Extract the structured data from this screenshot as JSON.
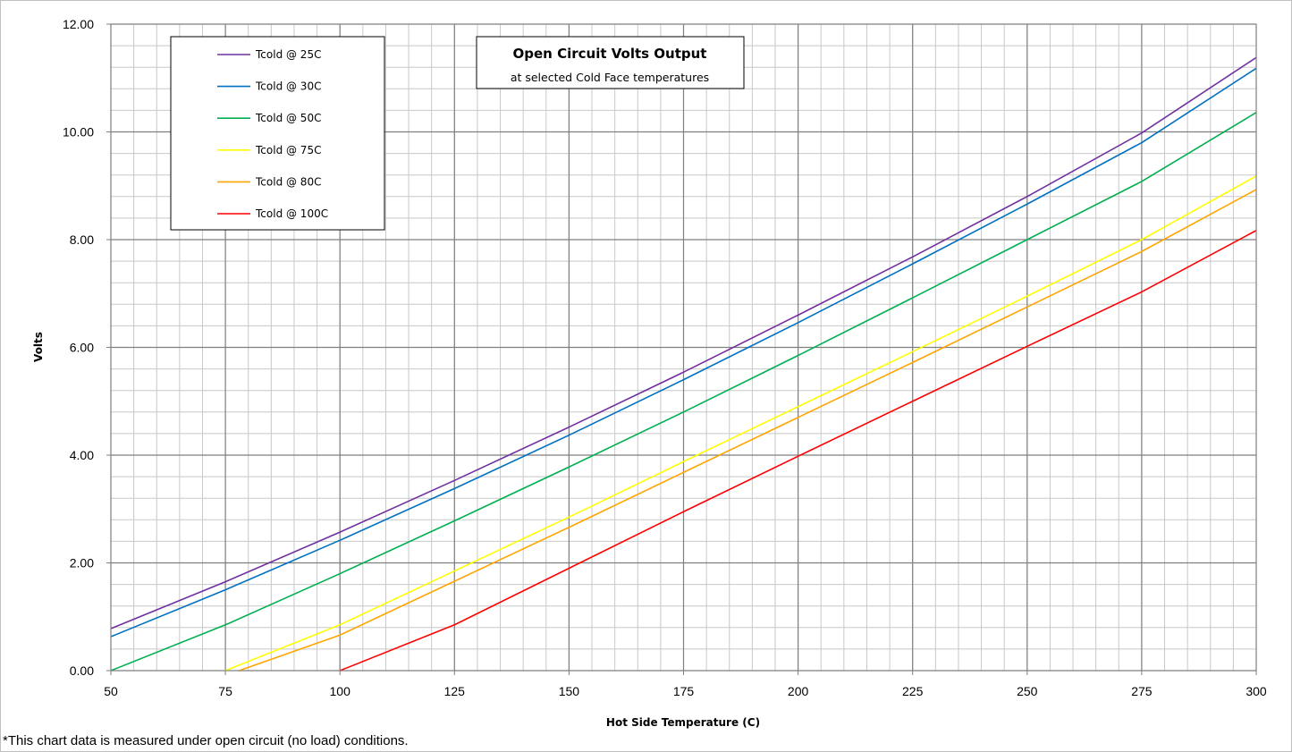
{
  "chart_data": {
    "type": "line",
    "title": "Open Circuit Volts Output",
    "subtitle": "at selected Cold Face temperatures",
    "xlabel": "Hot Side Temperature (C)",
    "ylabel": "Volts",
    "xlim": [
      50,
      300
    ],
    "ylim": [
      0,
      12
    ],
    "x_ticks": [
      50,
      75,
      100,
      125,
      150,
      175,
      200,
      225,
      250,
      275,
      300
    ],
    "y_ticks": [
      "0.00",
      "2.00",
      "4.00",
      "6.00",
      "8.00",
      "10.00",
      "12.00"
    ],
    "x_minor_step": 5,
    "y_minor_step": 0.4,
    "grid": true,
    "legend_position": "top-left",
    "series": [
      {
        "name": "Tcold @ 25C",
        "color": "#7030a0",
        "points": [
          [
            50,
            0.78
          ],
          [
            75,
            1.65
          ],
          [
            100,
            2.57
          ],
          [
            125,
            3.53
          ],
          [
            150,
            4.52
          ],
          [
            175,
            5.54
          ],
          [
            200,
            6.6
          ],
          [
            225,
            7.68
          ],
          [
            250,
            8.8
          ],
          [
            275,
            9.98
          ],
          [
            300,
            11.38
          ]
        ]
      },
      {
        "name": "Tcold @ 30C",
        "color": "#0070c0",
        "points": [
          [
            50,
            0.63
          ],
          [
            75,
            1.5
          ],
          [
            100,
            2.42
          ],
          [
            125,
            3.38
          ],
          [
            150,
            4.37
          ],
          [
            175,
            5.4
          ],
          [
            200,
            6.46
          ],
          [
            225,
            7.55
          ],
          [
            250,
            8.66
          ],
          [
            275,
            9.8
          ],
          [
            300,
            11.18
          ]
        ]
      },
      {
        "name": "Tcold @ 50C",
        "color": "#00b050",
        "points": [
          [
            50,
            0.0
          ],
          [
            75,
            0.85
          ],
          [
            100,
            1.8
          ],
          [
            125,
            2.78
          ],
          [
            150,
            3.78
          ],
          [
            175,
            4.8
          ],
          [
            200,
            5.85
          ],
          [
            225,
            6.92
          ],
          [
            250,
            8.0
          ],
          [
            275,
            9.08
          ],
          [
            300,
            10.36
          ]
        ]
      },
      {
        "name": "Tcold @ 75C",
        "color": "#ffff00",
        "points": [
          [
            75,
            0.0
          ],
          [
            100,
            0.85
          ],
          [
            125,
            1.85
          ],
          [
            150,
            2.85
          ],
          [
            175,
            3.88
          ],
          [
            200,
            4.9
          ],
          [
            225,
            5.92
          ],
          [
            250,
            6.95
          ],
          [
            275,
            8.0
          ],
          [
            300,
            9.18
          ]
        ]
      },
      {
        "name": "Tcold @ 80C",
        "color": "#ffa500",
        "points": [
          [
            78,
            0.0
          ],
          [
            100,
            0.66
          ],
          [
            125,
            1.66
          ],
          [
            150,
            2.66
          ],
          [
            175,
            3.68
          ],
          [
            200,
            4.7
          ],
          [
            225,
            5.72
          ],
          [
            250,
            6.75
          ],
          [
            275,
            7.78
          ],
          [
            300,
            8.93
          ]
        ]
      },
      {
        "name": "Tcold @ 100C",
        "color": "#ff0000",
        "points": [
          [
            100,
            0.0
          ],
          [
            125,
            0.85
          ],
          [
            150,
            1.9
          ],
          [
            175,
            2.95
          ],
          [
            200,
            3.98
          ],
          [
            225,
            5.0
          ],
          [
            250,
            6.02
          ],
          [
            275,
            7.03
          ],
          [
            300,
            8.17
          ]
        ]
      }
    ]
  },
  "footnote": "*This chart data is measured under open circuit (no load) conditions."
}
